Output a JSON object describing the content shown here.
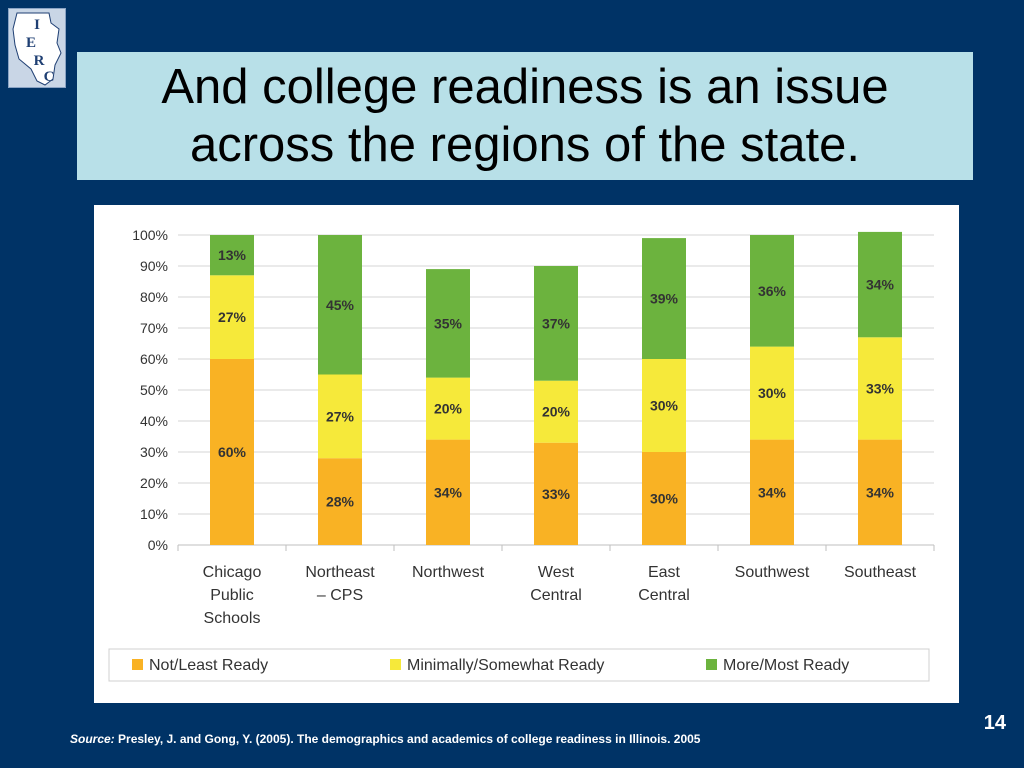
{
  "slide": {
    "title": "And college readiness is an issue across the regions of the state.",
    "page_number": "14",
    "source_label": "Source:",
    "source_text": "Presley, J. and Gong, Y. (2005). The demographics and academics of college readiness in Illinois. 2005",
    "logo_letters": [
      "I",
      "E",
      "R",
      "C"
    ],
    "colors": {
      "background": "#003366",
      "title_box": "#b8e0e8",
      "logo_bg": "#c9d6e6",
      "logo_ink": "#1f3f73"
    }
  },
  "chart_data": {
    "type": "bar",
    "stacked": true,
    "categories": [
      [
        "Chicago",
        "Public",
        "Schools"
      ],
      [
        "Northeast",
        "– CPS"
      ],
      [
        "Northwest"
      ],
      [
        "West",
        "Central"
      ],
      [
        "East",
        "Central"
      ],
      [
        "Southwest"
      ],
      [
        "Southeast"
      ]
    ],
    "series": [
      {
        "name": "Not/Least Ready",
        "color": "#f9b224",
        "values": [
          60,
          28,
          34,
          33,
          30,
          34,
          34
        ],
        "labels": [
          "60%",
          "28%",
          "34%",
          "33%",
          "30%",
          "34%",
          "34%"
        ]
      },
      {
        "name": "Minimally/Somewhat Ready",
        "color": "#f6e93a",
        "values": [
          27,
          27,
          20,
          20,
          30,
          30,
          33
        ],
        "labels": [
          "27%",
          "27%",
          "20%",
          "20%",
          "30%",
          "30%",
          "33%"
        ]
      },
      {
        "name": "More/Most Ready",
        "color": "#6cb33e",
        "values": [
          13,
          45,
          35,
          37,
          39,
          36,
          34
        ],
        "labels": [
          "13%",
          "45%",
          "35%",
          "37%",
          "39%",
          "36%",
          "34%"
        ]
      }
    ],
    "yticks": [
      "0%",
      "10%",
      "20%",
      "30%",
      "40%",
      "50%",
      "60%",
      "70%",
      "80%",
      "90%",
      "100%"
    ],
    "ylim": [
      0,
      100
    ],
    "grid": true,
    "legend_position": "bottom"
  }
}
